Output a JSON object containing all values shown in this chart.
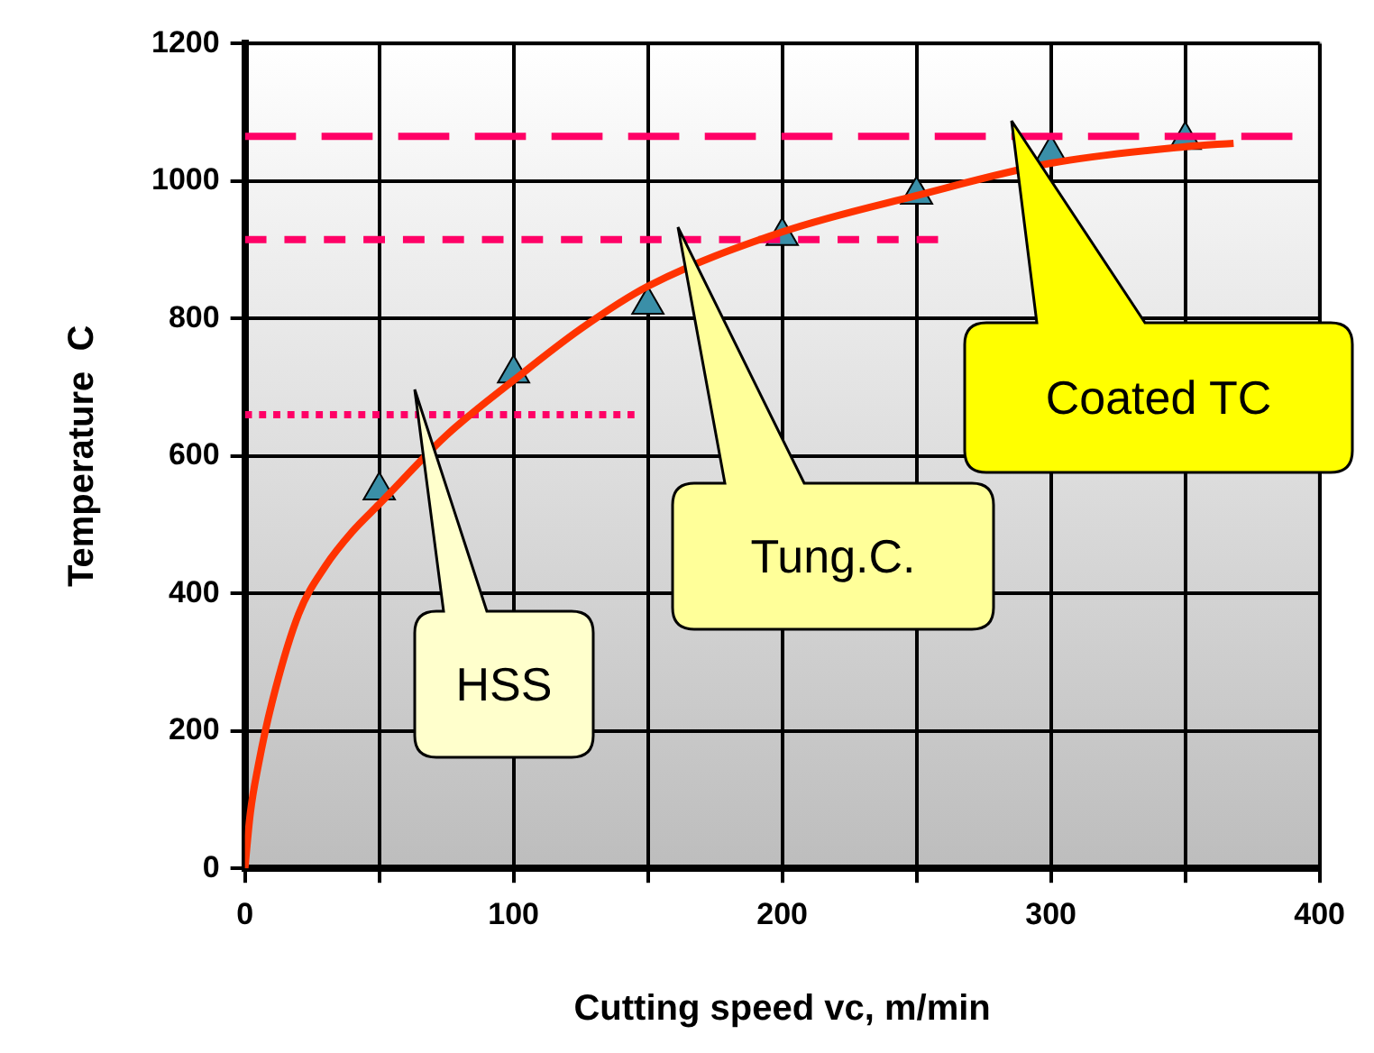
{
  "chart_data": {
    "type": "scatter",
    "xlabel": "Cutting speed vc, m/min",
    "ylabel": "Temperature  C",
    "xlim": [
      0,
      400
    ],
    "xticks": [
      0,
      {
        "value": 50,
        "label": null
      },
      100,
      {
        "value": 150,
        "label": null
      },
      200,
      {
        "value": 250,
        "label": null
      },
      300,
      {
        "value": 350,
        "label": null
      },
      400
    ],
    "ylim": [
      0,
      1200
    ],
    "yticks": [
      0,
      200,
      400,
      600,
      800,
      1000,
      1200
    ],
    "grid": true,
    "legend": false,
    "series": [
      {
        "type": "line",
        "color": "#ff0066",
        "line_style": "dotted",
        "marker": "none",
        "x": [
          0,
          145
        ],
        "values": [
          660,
          660
        ]
      },
      {
        "type": "line",
        "color": "#ff0066",
        "line_style": "dashed",
        "marker": "none",
        "x": [
          0,
          258
        ],
        "values": [
          915,
          915
        ]
      },
      {
        "type": "line",
        "color": "#ff0066",
        "line_style": "dashed",
        "marker": "none",
        "x": [
          0,
          390
        ],
        "values": [
          1065,
          1065
        ]
      },
      {
        "type": "line",
        "color": "#ff3300",
        "line_style": "solid",
        "marker": "none",
        "x": [
          0,
          2,
          5,
          10,
          20,
          30,
          40,
          50,
          75,
          100,
          125,
          150,
          200,
          250,
          300,
          350,
          368
        ],
        "values": [
          0,
          80,
          150,
          240,
          370,
          440,
          490,
          530,
          630,
          710,
          785,
          847,
          926,
          979,
          1026,
          1050,
          1055
        ]
      },
      {
        "color": "#3a8fa8",
        "marker": "triangle",
        "x": [
          50,
          100,
          150,
          200,
          250,
          300,
          350
        ],
        "values": [
          550,
          720,
          820,
          920,
          980,
          1040,
          1060
        ]
      }
    ],
    "annotations": [
      "HSS",
      "Tung.C.",
      "Coated TC"
    ]
  }
}
